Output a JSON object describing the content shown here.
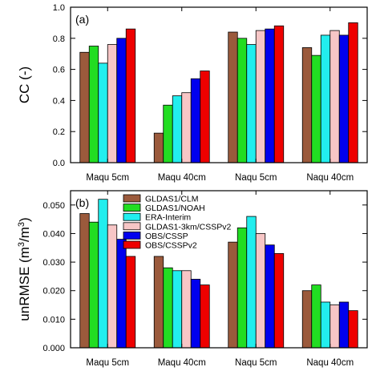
{
  "series_colors": [
    "#9b5a3c",
    "#22dd22",
    "#22eeee",
    "#f7c6c6",
    "#0000ee",
    "#ee0000"
  ],
  "chart_data": [
    {
      "type": "bar",
      "panel_label": "(a)",
      "ylabel": "CC (-)",
      "ylim": [
        0,
        1.0
      ],
      "yticks": [
        "0.0",
        "0.2",
        "0.4",
        "0.6",
        "0.8",
        "1.0"
      ],
      "categories": [
        "Maqu 5cm",
        "Maqu 40cm",
        "Naqu 5cm",
        "Naqu 40cm"
      ],
      "series": [
        {
          "name": "GLDAS1/CLM",
          "values": [
            0.71,
            0.19,
            0.84,
            0.74
          ]
        },
        {
          "name": "GLDAS1/NOAH",
          "values": [
            0.75,
            0.37,
            0.8,
            0.69
          ]
        },
        {
          "name": "ERA-Interim",
          "values": [
            0.64,
            0.43,
            0.76,
            0.82
          ]
        },
        {
          "name": "GLDAS1-3km/CSSPv2",
          "values": [
            0.76,
            0.45,
            0.85,
            0.85
          ]
        },
        {
          "name": "OBS/CSSP",
          "values": [
            0.8,
            0.54,
            0.86,
            0.82
          ]
        },
        {
          "name": "OBS/CSSPv2",
          "values": [
            0.86,
            0.59,
            0.88,
            0.9
          ]
        }
      ],
      "legend": false
    },
    {
      "type": "bar",
      "panel_label": "(b)",
      "ylabel_main": "unRMSE (m",
      "ylabel_sup1": "3",
      "ylabel_mid": "/m",
      "ylabel_sup2": "3",
      "ylabel_end": ")",
      "ylim": [
        0,
        0.055
      ],
      "yticks": [
        "0.000",
        "0.010",
        "0.020",
        "0.030",
        "0.040",
        "0.050"
      ],
      "categories": [
        "Maqu 5cm",
        "Maqu 40cm",
        "Naqu 5cm",
        "Naqu 40cm"
      ],
      "series": [
        {
          "name": "GLDAS1/CLM",
          "values": [
            0.047,
            0.032,
            0.037,
            0.02
          ]
        },
        {
          "name": "GLDAS1/NOAH",
          "values": [
            0.044,
            0.028,
            0.042,
            0.022
          ]
        },
        {
          "name": "ERA-Interim",
          "values": [
            0.052,
            0.027,
            0.046,
            0.016
          ]
        },
        {
          "name": "GLDAS1-3km/CSSPv2",
          "values": [
            0.043,
            0.027,
            0.04,
            0.015
          ]
        },
        {
          "name": "OBS/CSSP",
          "values": [
            0.038,
            0.024,
            0.036,
            0.016
          ]
        },
        {
          "name": "OBS/CSSPv2",
          "values": [
            0.032,
            0.022,
            0.033,
            0.013
          ]
        }
      ],
      "legend": true,
      "legend_placement": "top-center"
    }
  ]
}
